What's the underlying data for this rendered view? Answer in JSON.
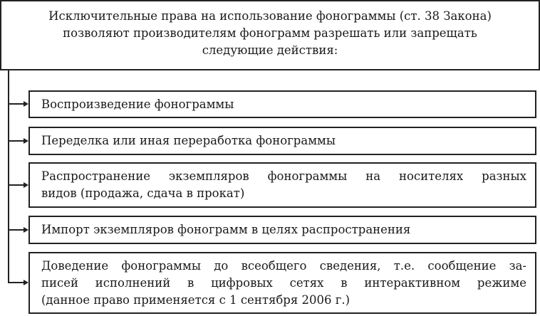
{
  "header": {
    "lines": [
      "Исключительные права на использование фонограммы (ст. 38 Закона)",
      "позволяют производителям фонограмм разрешать или запрещать",
      "следующие действия:"
    ]
  },
  "items": [
    {
      "lines": [
        "Воспроизведение фонограммы"
      ]
    },
    {
      "lines": [
        "Переделка или иная переработка фонограммы"
      ]
    },
    {
      "lines": [
        "Распространение экземпляров фонограммы на носителях разных",
        "видов (продажа, сдача в прокат)"
      ]
    },
    {
      "lines": [
        "Импорт экземпляров фонограмм в целях распространения"
      ]
    },
    {
      "lines": [
        "Доведение фонограммы до всеобщего сведения, т.е. сообщение за-",
        "писей исполнений в цифровых сетях в интерактивном режиме",
        "(данное право применяется с 1 сентября 2006 г.)"
      ]
    }
  ]
}
